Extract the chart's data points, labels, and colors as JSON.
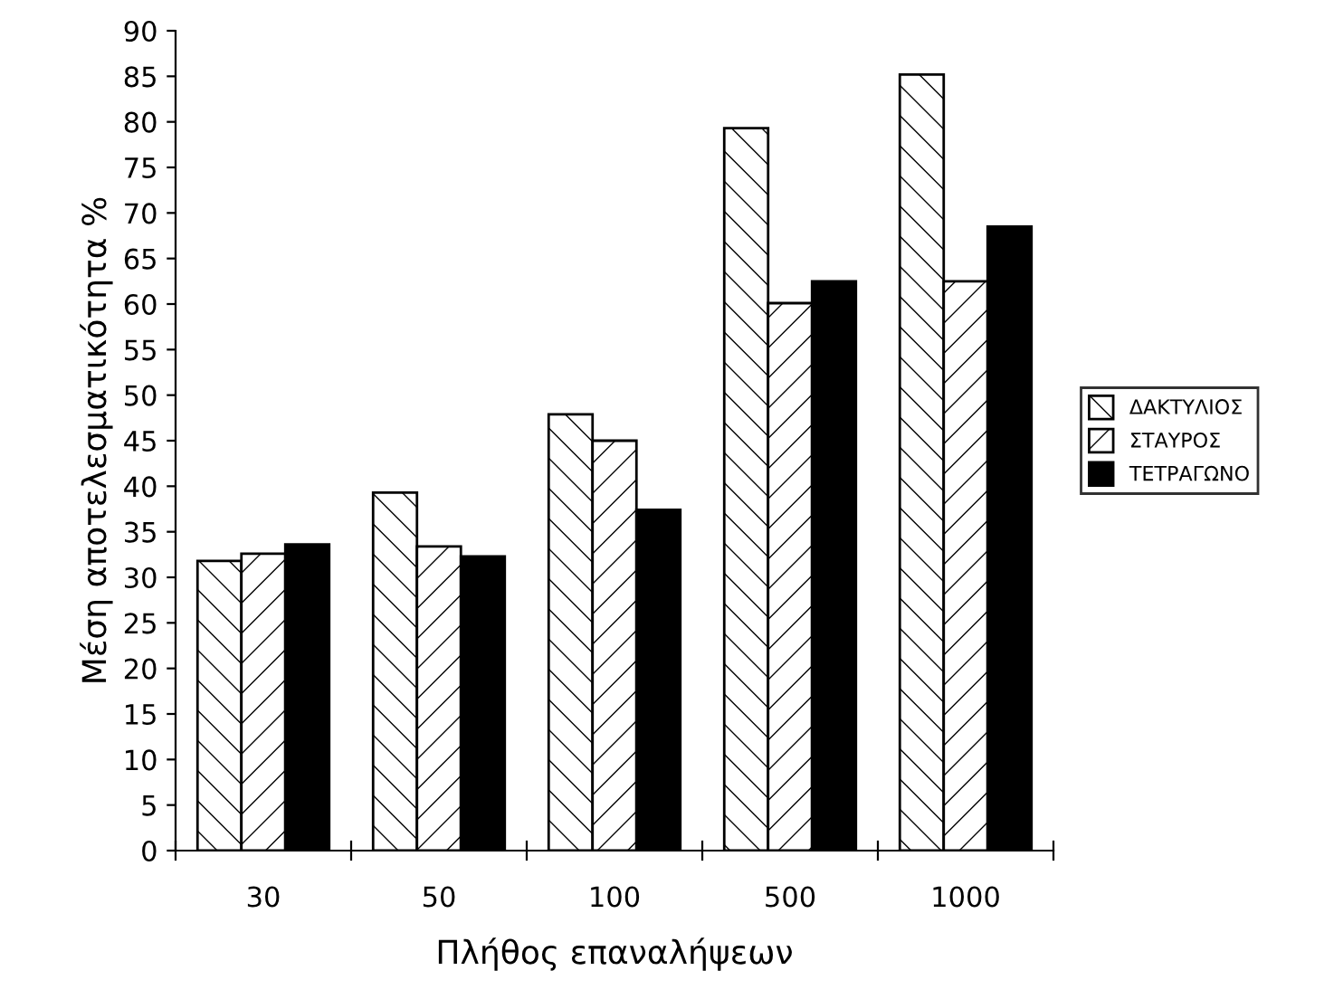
{
  "chart_data": {
    "type": "bar",
    "xlabel": "Πλήθος επαναλήψεων",
    "ylabel": "Μέση αποτελεσματικότητα %",
    "categories": [
      "30",
      "50",
      "100",
      "500",
      "1000"
    ],
    "series": [
      {
        "name": "ΔΑΚΤΥΛΙΟΣ",
        "color": "#000000",
        "values": [
          31.8,
          39.3,
          47.9,
          79.3,
          85.2
        ]
      },
      {
        "name": "ΣΤΑΥΡΟΣ",
        "color": "#000000",
        "values": [
          32.6,
          33.4,
          45.0,
          60.1,
          62.5
        ]
      },
      {
        "name": "ΤΕΤΡΑΓΩΝΟ",
        "color": "#000000",
        "values": [
          33.6,
          32.3,
          37.4,
          62.5,
          68.5
        ]
      }
    ],
    "ylim": [
      0,
      90
    ],
    "yticks": [
      0,
      5,
      10,
      15,
      20,
      25,
      30,
      35,
      40,
      45,
      50,
      55,
      60,
      65,
      70,
      75,
      80,
      85,
      90
    ],
    "grid": false,
    "legend": "right"
  }
}
